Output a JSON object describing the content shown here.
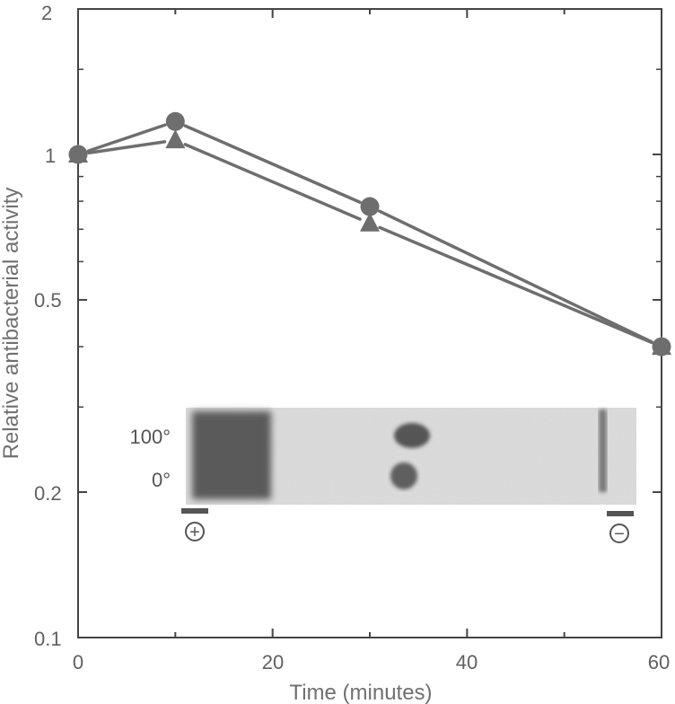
{
  "chart_data": {
    "type": "line",
    "title": "",
    "xlabel": "Time (minutes)",
    "ylabel": "Relative antibacterial activity",
    "xlim": [
      0,
      60
    ],
    "ylim": [
      0.1,
      2
    ],
    "y_scale": "log",
    "x_ticks": [
      0,
      20,
      40,
      60
    ],
    "x_tick_labels": [
      "0",
      "20",
      "40",
      "60"
    ],
    "y_ticks": [
      0.1,
      0.2,
      0.5,
      1,
      2
    ],
    "y_tick_labels": [
      "0.1",
      "0.2",
      "0.5",
      "1",
      "2"
    ],
    "grid": false,
    "series": [
      {
        "marker": "circle",
        "x": [
          0,
          10,
          30,
          60
        ],
        "y": [
          1.0,
          1.17,
          0.78,
          0.4
        ]
      },
      {
        "marker": "triangle",
        "x": [
          0,
          10,
          30,
          60
        ],
        "y": [
          1.0,
          1.07,
          0.72,
          0.4
        ]
      }
    ],
    "inset": {
      "row_labels": [
        "100°",
        "0°"
      ],
      "electrode_labels": [
        "+",
        "−"
      ]
    },
    "colors": {
      "line": "#6e6e6e",
      "axis": "#444444",
      "gel": "#a8a8a8"
    }
  }
}
